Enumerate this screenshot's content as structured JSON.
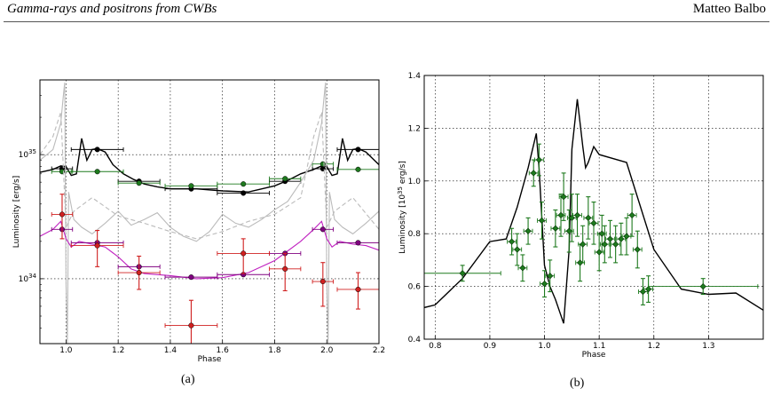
{
  "header": {
    "title": "Gamma-rays and positrons from CWBs",
    "author": "Matteo Balbo"
  },
  "captions": {
    "a": "(a)",
    "b": "(b)"
  },
  "chart_data": [
    {
      "type": "scatter",
      "panel": "a",
      "xlabel": "Phase",
      "ylabel": "Luminosity [erg/s]",
      "xlim": [
        0.9,
        2.2
      ],
      "ylim": [
        3e+33,
        4e+35
      ],
      "yscale": "log",
      "xticks": [
        "1.0",
        "1.2",
        "1.4",
        "1.6",
        "1.8",
        "2.0",
        "2.2"
      ],
      "yticks": [
        {
          "value": 1e+34,
          "base": "10",
          "exp": "34"
        },
        {
          "value": 1e+35,
          "base": "10",
          "exp": "35"
        }
      ],
      "grid": true,
      "series": [
        {
          "color": "#000000",
          "style": "line",
          "x": [
            0.9,
            0.95,
            0.98,
            1.0,
            1.02,
            1.04,
            1.06,
            1.08,
            1.1,
            1.12,
            1.15,
            1.18,
            1.22,
            1.26,
            1.3,
            1.35,
            1.4,
            1.5,
            1.6,
            1.7,
            1.8,
            1.85,
            1.9,
            1.95,
            1.98,
            2.0,
            2.02,
            2.04,
            2.06,
            2.08,
            2.1,
            2.12,
            2.15,
            2.2
          ],
          "y": [
            7.2e+34,
            7.6e+34,
            8.1e+34,
            8e+34,
            6.8e+34,
            7e+34,
            1.35e+35,
            9e+34,
            1.1e+35,
            1.12e+35,
            1.05e+35,
            8.3e+34,
            7e+34,
            6.3e+34,
            5.8e+34,
            5.5e+34,
            5.3e+34,
            5.3e+34,
            5.1e+34,
            5e+34,
            5.6e+34,
            6.2e+34,
            7e+34,
            7.6e+34,
            8.1e+34,
            8e+34,
            6.8e+34,
            7e+34,
            1.35e+35,
            9e+34,
            1.1e+35,
            1.12e+35,
            1.05e+35,
            8.3e+34
          ]
        },
        {
          "color": "#000000",
          "style": "points",
          "x": [
            0.985,
            1.12,
            1.28,
            1.48,
            1.68,
            1.84,
            1.985,
            2.12
          ],
          "xerr": [
            0.04,
            0.1,
            0.08,
            0.1,
            0.1,
            0.06,
            0.04,
            0.08
          ],
          "y": [
            7.7e+34,
            1.1e+35,
            6.1e+34,
            5.3e+34,
            4.9e+34,
            6.1e+34,
            7.7e+34,
            1.1e+35
          ]
        },
        {
          "color": "#1e7a1e",
          "style": "points",
          "x": [
            0.985,
            1.12,
            1.28,
            1.48,
            1.68,
            1.84,
            1.985,
            2.12
          ],
          "xerr": [
            0.04,
            0.1,
            0.08,
            0.1,
            0.1,
            0.06,
            0.04,
            0.08
          ],
          "y": [
            7.3e+34,
            7.3e+34,
            5.9e+34,
            5.6e+34,
            5.8e+34,
            6.4e+34,
            8.4e+34,
            7.6e+34
          ]
        },
        {
          "color": "#bbbbbb",
          "style": "line",
          "x": [
            0.9,
            0.95,
            0.98,
            0.99,
            0.995,
            1.0,
            1.005,
            1.01,
            1.03,
            1.06,
            1.1,
            1.15,
            1.2,
            1.25,
            1.3,
            1.35,
            1.4,
            1.45,
            1.5,
            1.55,
            1.6,
            1.65,
            1.7,
            1.75,
            1.8,
            1.85,
            1.9,
            1.95,
            1.98,
            1.99,
            1.995,
            2.0,
            2.005,
            2.01,
            2.03,
            2.06,
            2.1,
            2.15,
            2.2
          ],
          "y": [
            9e+34,
            1.1e+35,
            1.8e+35,
            3e+35,
            3.8e+35,
            9e+33,
            3e+33,
            5e+34,
            3e+34,
            2.6e+34,
            2.3e+34,
            2.8e+34,
            3.5e+34,
            2.7e+34,
            3e+34,
            3.4e+34,
            2.6e+34,
            2.2e+34,
            2e+34,
            2.4e+34,
            3.3e+34,
            2.8e+34,
            2.6e+34,
            3e+34,
            3.6e+34,
            4.2e+34,
            6e+34,
            9e+34,
            1.8e+35,
            3e+35,
            3.8e+35,
            9e+33,
            3e+33,
            5e+34,
            3e+34,
            2.6e+34,
            2.3e+34,
            2.8e+34,
            3.5e+34
          ]
        },
        {
          "color": "#bbbbbb",
          "style": "dashed",
          "x": [
            0.9,
            0.95,
            0.98,
            1.0,
            1.03,
            1.1,
            1.2,
            1.3,
            1.4,
            1.5,
            1.6,
            1.7,
            1.8,
            1.9,
            1.95,
            1.98,
            2.0,
            2.03,
            2.1,
            2.2
          ],
          "y": [
            1e+35,
            1.4e+35,
            2.2e+35,
            2.6e+34,
            3.5e+34,
            4.5e+34,
            3.2e+34,
            2.8e+34,
            2.4e+34,
            2.1e+34,
            2.4e+34,
            2.9e+34,
            3.3e+34,
            4.5e+34,
            1.4e+35,
            2.2e+35,
            2.6e+34,
            3.5e+34,
            4.5e+34,
            2.5e+34
          ]
        },
        {
          "color": "#c020c0",
          "style": "line",
          "x": [
            0.9,
            0.95,
            0.98,
            1.0,
            1.02,
            1.05,
            1.1,
            1.15,
            1.2,
            1.25,
            1.3,
            1.4,
            1.5,
            1.6,
            1.7,
            1.8,
            1.9,
            1.95,
            1.98,
            2.0,
            2.02,
            2.05,
            2.1,
            2.15,
            2.2
          ],
          "y": [
            2.2e+34,
            2.5e+34,
            2.9e+34,
            2.1e+34,
            1.8e+34,
            2e+34,
            1.9e+34,
            1.8e+34,
            1.5e+34,
            1.2e+34,
            1.1e+34,
            1.06e+34,
            1e+34,
            1.02e+34,
            1.12e+34,
            1.4e+34,
            2e+34,
            2.5e+34,
            2.9e+34,
            2.1e+34,
            1.8e+34,
            2e+34,
            1.9e+34,
            1.85e+34,
            1.7e+34
          ]
        },
        {
          "color": "#800080",
          "style": "points",
          "x": [
            0.985,
            1.12,
            1.28,
            1.48,
            1.68,
            1.84,
            1.985,
            2.12
          ],
          "xerr": [
            0.04,
            0.1,
            0.08,
            0.1,
            0.1,
            0.06,
            0.04,
            0.08
          ],
          "y": [
            2.5e+34,
            1.95e+34,
            1.25e+34,
            1.03e+34,
            1.08e+34,
            1.6e+34,
            2.5e+34,
            1.95e+34
          ]
        },
        {
          "color": "#d02020",
          "style": "points",
          "x": [
            0.985,
            1.12,
            1.28,
            1.48,
            1.68,
            1.84,
            1.985,
            2.12
          ],
          "xerr": [
            0.04,
            0.1,
            0.08,
            0.1,
            0.1,
            0.06,
            0.04,
            0.08
          ],
          "y": [
            3.3e+34,
            1.85e+34,
            1.12e+34,
            4.2e+33,
            1.6e+34,
            1.2e+34,
            9.5e+33,
            8.2e+33
          ],
          "yerr_lo": [
            1.2e+34,
            6e+33,
            3e+33,
            2e+33,
            5e+33,
            4e+33,
            3.5e+33,
            2.5e+33
          ],
          "yerr_hi": [
            1.5e+34,
            6e+33,
            4e+33,
            2.5e+33,
            5e+33,
            4e+33,
            4e+33,
            3e+33
          ]
        }
      ]
    },
    {
      "type": "scatter",
      "panel": "b",
      "xlabel": "Phase",
      "ylabel": "Luminosity [10^35 erg/s]",
      "ylabel_parts": {
        "pre": "Luminosity [10",
        "sup": "35",
        "post": " erg/s]"
      },
      "xlim": [
        0.78,
        1.4
      ],
      "ylim": [
        0.4,
        1.4
      ],
      "xticks": [
        "0.8",
        "0.9",
        "1.0",
        "1.1",
        "1.2",
        "1.3"
      ],
      "yticks": [
        "0.4",
        "0.6",
        "0.8",
        "1.0",
        "1.2",
        "1.4"
      ],
      "grid": true,
      "series": [
        {
          "color": "#000000",
          "style": "line",
          "x": [
            0.78,
            0.8,
            0.85,
            0.9,
            0.93,
            0.95,
            0.97,
            0.985,
            0.99,
            1.0,
            1.01,
            1.02,
            1.035,
            1.045,
            1.05,
            1.06,
            1.07,
            1.075,
            1.08,
            1.09,
            1.1,
            1.15,
            1.2,
            1.25,
            1.3,
            1.35,
            1.4
          ],
          "y": [
            0.52,
            0.53,
            0.63,
            0.77,
            0.78,
            0.9,
            1.05,
            1.18,
            1.05,
            0.68,
            0.6,
            0.55,
            0.46,
            0.74,
            1.12,
            1.31,
            1.13,
            1.05,
            1.07,
            1.13,
            1.1,
            1.07,
            0.74,
            0.59,
            0.57,
            0.575,
            0.51
          ]
        },
        {
          "color": "#1e7a1e",
          "style": "points",
          "x": [
            0.85,
            0.94,
            0.95,
            0.96,
            0.97,
            0.98,
            0.99,
            0.995,
            1.0,
            1.01,
            1.02,
            1.03,
            1.035,
            1.045,
            1.05,
            1.06,
            1.065,
            1.07,
            1.08,
            1.09,
            1.1,
            1.105,
            1.11,
            1.12,
            1.13,
            1.14,
            1.15,
            1.16,
            1.17,
            1.18,
            1.19,
            1.29
          ],
          "xerr": [
            0.07,
            0.008,
            0.008,
            0.008,
            0.008,
            0.008,
            0.008,
            0.008,
            0.008,
            0.008,
            0.008,
            0.008,
            0.008,
            0.008,
            0.008,
            0.008,
            0.008,
            0.008,
            0.008,
            0.008,
            0.008,
            0.008,
            0.008,
            0.008,
            0.008,
            0.008,
            0.008,
            0.008,
            0.008,
            0.008,
            0.008,
            0.1
          ],
          "y": [
            0.65,
            0.77,
            0.74,
            0.67,
            0.81,
            1.03,
            1.08,
            0.85,
            0.61,
            0.64,
            0.82,
            0.87,
            0.94,
            0.81,
            0.86,
            0.87,
            0.69,
            0.76,
            0.86,
            0.84,
            0.73,
            0.8,
            0.76,
            0.78,
            0.76,
            0.78,
            0.79,
            0.87,
            0.74,
            0.58,
            0.59,
            0.6
          ],
          "yerr": [
            0.03,
            0.05,
            0.06,
            0.05,
            0.05,
            0.05,
            0.06,
            0.07,
            0.05,
            0.06,
            0.07,
            0.08,
            0.09,
            0.08,
            0.09,
            0.08,
            0.07,
            0.07,
            0.08,
            0.08,
            0.07,
            0.07,
            0.07,
            0.07,
            0.07,
            0.06,
            0.07,
            0.08,
            0.07,
            0.05,
            0.05,
            0.03
          ]
        }
      ]
    }
  ]
}
